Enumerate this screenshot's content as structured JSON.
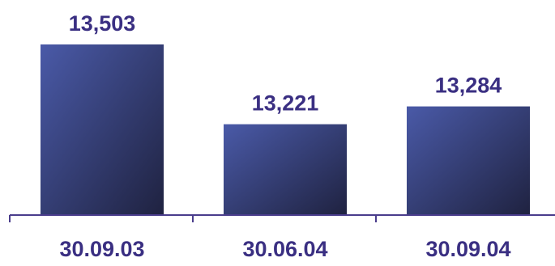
{
  "chart_data": {
    "type": "bar",
    "categories": [
      "30.09.03",
      "30.06.04",
      "30.09.04"
    ],
    "values": [
      13.503,
      13.221,
      13.284
    ],
    "value_labels": [
      "13,503",
      "13,221",
      "13,284"
    ],
    "title": "",
    "xlabel": "",
    "ylabel": "",
    "grid": false,
    "legend": "none",
    "colors": {
      "bar_light": "#4a5aa8",
      "bar_dark": "#1f2240",
      "text": "#3a2f82",
      "axis": "#4a3d8c"
    }
  }
}
